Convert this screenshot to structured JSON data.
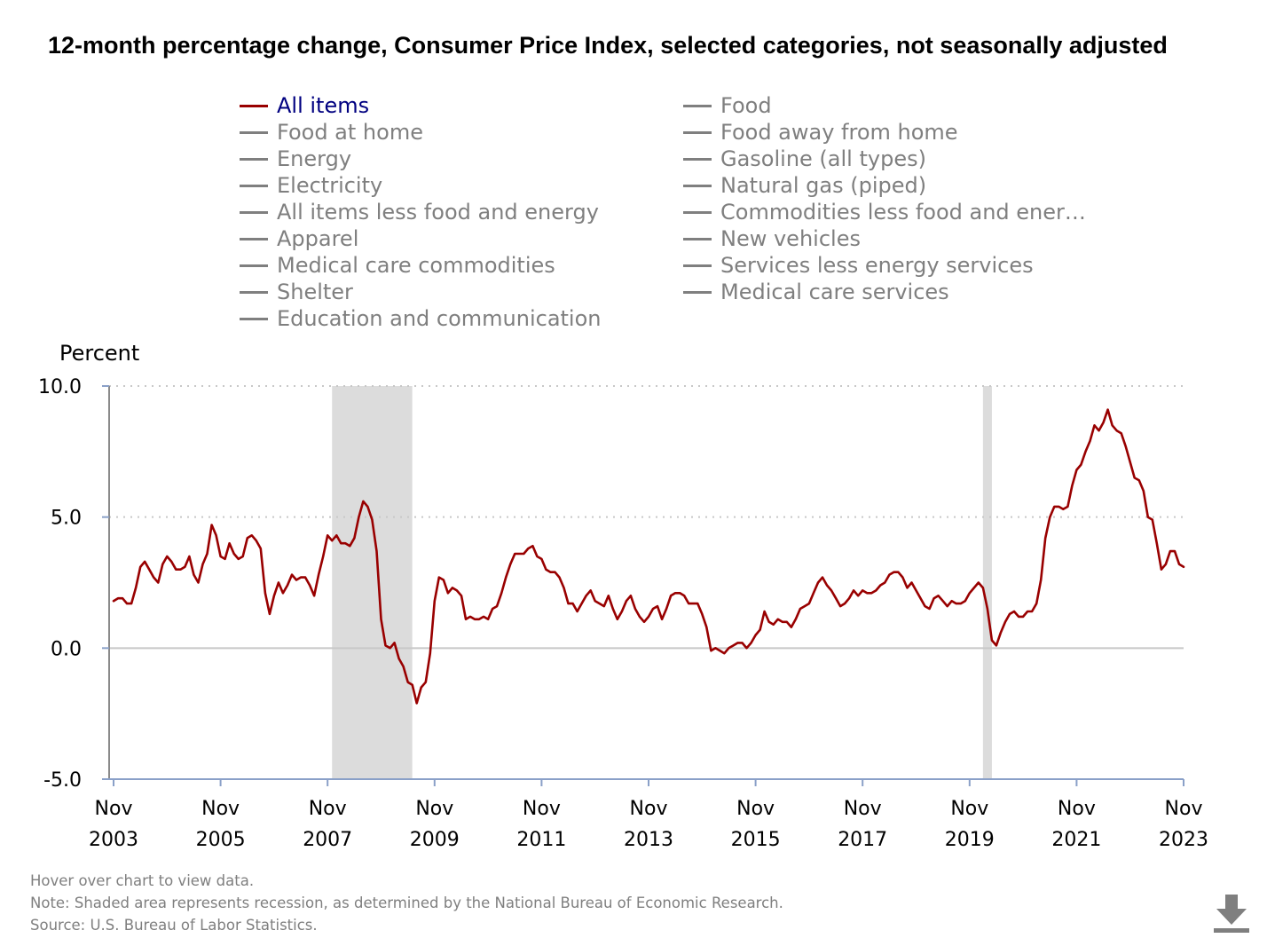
{
  "title": "12-month percentage change, Consumer Price Index, selected categories, not seasonally adjusted",
  "legend": [
    {
      "label": "All items",
      "active": true
    },
    {
      "label": "Food",
      "active": false
    },
    {
      "label": "Food at home",
      "active": false
    },
    {
      "label": "Food away from home",
      "active": false
    },
    {
      "label": "Energy",
      "active": false
    },
    {
      "label": "Gasoline (all types)",
      "active": false
    },
    {
      "label": "Electricity",
      "active": false
    },
    {
      "label": "Natural gas (piped)",
      "active": false
    },
    {
      "label": "All items less food and energy",
      "active": false
    },
    {
      "label": "Commodities less food and ener…",
      "active": false
    },
    {
      "label": "Apparel",
      "active": false
    },
    {
      "label": "New vehicles",
      "active": false
    },
    {
      "label": "Medical care commodities",
      "active": false
    },
    {
      "label": "Services less energy services",
      "active": false
    },
    {
      "label": "Shelter",
      "active": false
    },
    {
      "label": "Medical care services",
      "active": false
    },
    {
      "label": "Education and communication",
      "active": false
    }
  ],
  "colors": {
    "active_series": "#990000",
    "active_label": "#000080",
    "inactive": "#7f7f7f",
    "recession": "#dcdcdc"
  },
  "icons": {
    "download": "download-icon"
  },
  "notes": {
    "hover": "Hover over chart to view data.",
    "recession": "Note: Shaded area represents recession, as determined by the National Bureau of Economic Research.",
    "source": "Source: U.S. Bureau of Labor Statistics."
  },
  "chart_data": {
    "type": "line",
    "ylabel": "Percent",
    "ylim": [
      -5.0,
      10.0
    ],
    "yticks": [
      "10.0",
      "5.0",
      "0.0",
      "-5.0"
    ],
    "ytick_values": [
      10,
      5,
      0,
      -5
    ],
    "grid": "horizontal dotted",
    "xticks": [
      {
        "date": "2003-11",
        "month": "Nov",
        "year": "2003"
      },
      {
        "date": "2005-11",
        "month": "Nov",
        "year": "2005"
      },
      {
        "date": "2007-11",
        "month": "Nov",
        "year": "2007"
      },
      {
        "date": "2009-11",
        "month": "Nov",
        "year": "2009"
      },
      {
        "date": "2011-11",
        "month": "Nov",
        "year": "2011"
      },
      {
        "date": "2013-11",
        "month": "Nov",
        "year": "2013"
      },
      {
        "date": "2015-11",
        "month": "Nov",
        "year": "2015"
      },
      {
        "date": "2017-11",
        "month": "Nov",
        "year": "2017"
      },
      {
        "date": "2019-11",
        "month": "Nov",
        "year": "2019"
      },
      {
        "date": "2021-11",
        "month": "Nov",
        "year": "2021"
      },
      {
        "date": "2023-11",
        "month": "Nov",
        "year": "2023"
      }
    ],
    "x_start": "2003-11",
    "x_end": "2023-11",
    "recessions": [
      {
        "start": "2007-12",
        "end": "2009-06"
      },
      {
        "start": "2020-02",
        "end": "2020-04"
      }
    ],
    "series": [
      {
        "name": "All items",
        "color": "#990000",
        "points": [
          [
            "2003-11",
            1.8
          ],
          [
            "2003-12",
            1.9
          ],
          [
            "2004-01",
            1.9
          ],
          [
            "2004-02",
            1.7
          ],
          [
            "2004-03",
            1.7
          ],
          [
            "2004-04",
            2.3
          ],
          [
            "2004-05",
            3.1
          ],
          [
            "2004-06",
            3.3
          ],
          [
            "2004-07",
            3.0
          ],
          [
            "2004-08",
            2.7
          ],
          [
            "2004-09",
            2.5
          ],
          [
            "2004-10",
            3.2
          ],
          [
            "2004-11",
            3.5
          ],
          [
            "2004-12",
            3.3
          ],
          [
            "2005-01",
            3.0
          ],
          [
            "2005-02",
            3.0
          ],
          [
            "2005-03",
            3.1
          ],
          [
            "2005-04",
            3.5
          ],
          [
            "2005-05",
            2.8
          ],
          [
            "2005-06",
            2.5
          ],
          [
            "2005-07",
            3.2
          ],
          [
            "2005-08",
            3.6
          ],
          [
            "2005-09",
            4.7
          ],
          [
            "2005-10",
            4.3
          ],
          [
            "2005-11",
            3.5
          ],
          [
            "2005-12",
            3.4
          ],
          [
            "2006-01",
            4.0
          ],
          [
            "2006-02",
            3.6
          ],
          [
            "2006-03",
            3.4
          ],
          [
            "2006-04",
            3.5
          ],
          [
            "2006-05",
            4.2
          ],
          [
            "2006-06",
            4.3
          ],
          [
            "2006-07",
            4.1
          ],
          [
            "2006-08",
            3.8
          ],
          [
            "2006-09",
            2.1
          ],
          [
            "2006-10",
            1.3
          ],
          [
            "2006-11",
            2.0
          ],
          [
            "2006-12",
            2.5
          ],
          [
            "2007-01",
            2.1
          ],
          [
            "2007-02",
            2.4
          ],
          [
            "2007-03",
            2.8
          ],
          [
            "2007-04",
            2.6
          ],
          [
            "2007-05",
            2.7
          ],
          [
            "2007-06",
            2.7
          ],
          [
            "2007-07",
            2.4
          ],
          [
            "2007-08",
            2.0
          ],
          [
            "2007-09",
            2.8
          ],
          [
            "2007-10",
            3.5
          ],
          [
            "2007-11",
            4.3
          ],
          [
            "2007-12",
            4.1
          ],
          [
            "2008-01",
            4.3
          ],
          [
            "2008-02",
            4.0
          ],
          [
            "2008-03",
            4.0
          ],
          [
            "2008-04",
            3.9
          ],
          [
            "2008-05",
            4.2
          ],
          [
            "2008-06",
            5.0
          ],
          [
            "2008-07",
            5.6
          ],
          [
            "2008-08",
            5.4
          ],
          [
            "2008-09",
            4.9
          ],
          [
            "2008-10",
            3.7
          ],
          [
            "2008-11",
            1.1
          ],
          [
            "2008-12",
            0.1
          ],
          [
            "2009-01",
            0.0
          ],
          [
            "2009-02",
            0.2
          ],
          [
            "2009-03",
            -0.4
          ],
          [
            "2009-04",
            -0.7
          ],
          [
            "2009-05",
            -1.3
          ],
          [
            "2009-06",
            -1.4
          ],
          [
            "2009-07",
            -2.1
          ],
          [
            "2009-08",
            -1.5
          ],
          [
            "2009-09",
            -1.3
          ],
          [
            "2009-10",
            -0.2
          ],
          [
            "2009-11",
            1.8
          ],
          [
            "2009-12",
            2.7
          ],
          [
            "2010-01",
            2.6
          ],
          [
            "2010-02",
            2.1
          ],
          [
            "2010-03",
            2.3
          ],
          [
            "2010-04",
            2.2
          ],
          [
            "2010-05",
            2.0
          ],
          [
            "2010-06",
            1.1
          ],
          [
            "2010-07",
            1.2
          ],
          [
            "2010-08",
            1.1
          ],
          [
            "2010-09",
            1.1
          ],
          [
            "2010-10",
            1.2
          ],
          [
            "2010-11",
            1.1
          ],
          [
            "2010-12",
            1.5
          ],
          [
            "2011-01",
            1.6
          ],
          [
            "2011-02",
            2.1
          ],
          [
            "2011-03",
            2.7
          ],
          [
            "2011-04",
            3.2
          ],
          [
            "2011-05",
            3.6
          ],
          [
            "2011-06",
            3.6
          ],
          [
            "2011-07",
            3.6
          ],
          [
            "2011-08",
            3.8
          ],
          [
            "2011-09",
            3.9
          ],
          [
            "2011-10",
            3.5
          ],
          [
            "2011-11",
            3.4
          ],
          [
            "2011-12",
            3.0
          ],
          [
            "2012-01",
            2.9
          ],
          [
            "2012-02",
            2.9
          ],
          [
            "2012-03",
            2.7
          ],
          [
            "2012-04",
            2.3
          ],
          [
            "2012-05",
            1.7
          ],
          [
            "2012-06",
            1.7
          ],
          [
            "2012-07",
            1.4
          ],
          [
            "2012-08",
            1.7
          ],
          [
            "2012-09",
            2.0
          ],
          [
            "2012-10",
            2.2
          ],
          [
            "2012-11",
            1.8
          ],
          [
            "2012-12",
            1.7
          ],
          [
            "2013-01",
            1.6
          ],
          [
            "2013-02",
            2.0
          ],
          [
            "2013-03",
            1.5
          ],
          [
            "2013-04",
            1.1
          ],
          [
            "2013-05",
            1.4
          ],
          [
            "2013-06",
            1.8
          ],
          [
            "2013-07",
            2.0
          ],
          [
            "2013-08",
            1.5
          ],
          [
            "2013-09",
            1.2
          ],
          [
            "2013-10",
            1.0
          ],
          [
            "2013-11",
            1.2
          ],
          [
            "2013-12",
            1.5
          ],
          [
            "2014-01",
            1.6
          ],
          [
            "2014-02",
            1.1
          ],
          [
            "2014-03",
            1.5
          ],
          [
            "2014-04",
            2.0
          ],
          [
            "2014-05",
            2.1
          ],
          [
            "2014-06",
            2.1
          ],
          [
            "2014-07",
            2.0
          ],
          [
            "2014-08",
            1.7
          ],
          [
            "2014-09",
            1.7
          ],
          [
            "2014-10",
            1.7
          ],
          [
            "2014-11",
            1.3
          ],
          [
            "2014-12",
            0.8
          ],
          [
            "2015-01",
            -0.1
          ],
          [
            "2015-02",
            0.0
          ],
          [
            "2015-03",
            -0.1
          ],
          [
            "2015-04",
            -0.2
          ],
          [
            "2015-05",
            0.0
          ],
          [
            "2015-06",
            0.1
          ],
          [
            "2015-07",
            0.2
          ],
          [
            "2015-08",
            0.2
          ],
          [
            "2015-09",
            0.0
          ],
          [
            "2015-10",
            0.2
          ],
          [
            "2015-11",
            0.5
          ],
          [
            "2015-12",
            0.7
          ],
          [
            "2016-01",
            1.4
          ],
          [
            "2016-02",
            1.0
          ],
          [
            "2016-03",
            0.9
          ],
          [
            "2016-04",
            1.1
          ],
          [
            "2016-05",
            1.0
          ],
          [
            "2016-06",
            1.0
          ],
          [
            "2016-07",
            0.8
          ],
          [
            "2016-08",
            1.1
          ],
          [
            "2016-09",
            1.5
          ],
          [
            "2016-10",
            1.6
          ],
          [
            "2016-11",
            1.7
          ],
          [
            "2016-12",
            2.1
          ],
          [
            "2017-01",
            2.5
          ],
          [
            "2017-02",
            2.7
          ],
          [
            "2017-03",
            2.4
          ],
          [
            "2017-04",
            2.2
          ],
          [
            "2017-05",
            1.9
          ],
          [
            "2017-06",
            1.6
          ],
          [
            "2017-07",
            1.7
          ],
          [
            "2017-08",
            1.9
          ],
          [
            "2017-09",
            2.2
          ],
          [
            "2017-10",
            2.0
          ],
          [
            "2017-11",
            2.2
          ],
          [
            "2017-12",
            2.1
          ],
          [
            "2018-01",
            2.1
          ],
          [
            "2018-02",
            2.2
          ],
          [
            "2018-03",
            2.4
          ],
          [
            "2018-04",
            2.5
          ],
          [
            "2018-05",
            2.8
          ],
          [
            "2018-06",
            2.9
          ],
          [
            "2018-07",
            2.9
          ],
          [
            "2018-08",
            2.7
          ],
          [
            "2018-09",
            2.3
          ],
          [
            "2018-10",
            2.5
          ],
          [
            "2018-11",
            2.2
          ],
          [
            "2018-12",
            1.9
          ],
          [
            "2019-01",
            1.6
          ],
          [
            "2019-02",
            1.5
          ],
          [
            "2019-03",
            1.9
          ],
          [
            "2019-04",
            2.0
          ],
          [
            "2019-05",
            1.8
          ],
          [
            "2019-06",
            1.6
          ],
          [
            "2019-07",
            1.8
          ],
          [
            "2019-08",
            1.7
          ],
          [
            "2019-09",
            1.7
          ],
          [
            "2019-10",
            1.8
          ],
          [
            "2019-11",
            2.1
          ],
          [
            "2019-12",
            2.3
          ],
          [
            "2020-01",
            2.5
          ],
          [
            "2020-02",
            2.3
          ],
          [
            "2020-03",
            1.5
          ],
          [
            "2020-04",
            0.3
          ],
          [
            "2020-05",
            0.1
          ],
          [
            "2020-06",
            0.6
          ],
          [
            "2020-07",
            1.0
          ],
          [
            "2020-08",
            1.3
          ],
          [
            "2020-09",
            1.4
          ],
          [
            "2020-10",
            1.2
          ],
          [
            "2020-11",
            1.2
          ],
          [
            "2020-12",
            1.4
          ],
          [
            "2021-01",
            1.4
          ],
          [
            "2021-02",
            1.7
          ],
          [
            "2021-03",
            2.6
          ],
          [
            "2021-04",
            4.2
          ],
          [
            "2021-05",
            5.0
          ],
          [
            "2021-06",
            5.4
          ],
          [
            "2021-07",
            5.4
          ],
          [
            "2021-08",
            5.3
          ],
          [
            "2021-09",
            5.4
          ],
          [
            "2021-10",
            6.2
          ],
          [
            "2021-11",
            6.8
          ],
          [
            "2021-12",
            7.0
          ],
          [
            "2022-01",
            7.5
          ],
          [
            "2022-02",
            7.9
          ],
          [
            "2022-03",
            8.5
          ],
          [
            "2022-04",
            8.3
          ],
          [
            "2022-05",
            8.6
          ],
          [
            "2022-06",
            9.1
          ],
          [
            "2022-07",
            8.5
          ],
          [
            "2022-08",
            8.3
          ],
          [
            "2022-09",
            8.2
          ],
          [
            "2022-10",
            7.7
          ],
          [
            "2022-11",
            7.1
          ],
          [
            "2022-12",
            6.5
          ],
          [
            "2023-01",
            6.4
          ],
          [
            "2023-02",
            6.0
          ],
          [
            "2023-03",
            5.0
          ],
          [
            "2023-04",
            4.9
          ],
          [
            "2023-05",
            4.0
          ],
          [
            "2023-06",
            3.0
          ],
          [
            "2023-07",
            3.2
          ],
          [
            "2023-08",
            3.7
          ],
          [
            "2023-09",
            3.7
          ],
          [
            "2023-10",
            3.2
          ],
          [
            "2023-11",
            3.1
          ]
        ]
      }
    ]
  }
}
